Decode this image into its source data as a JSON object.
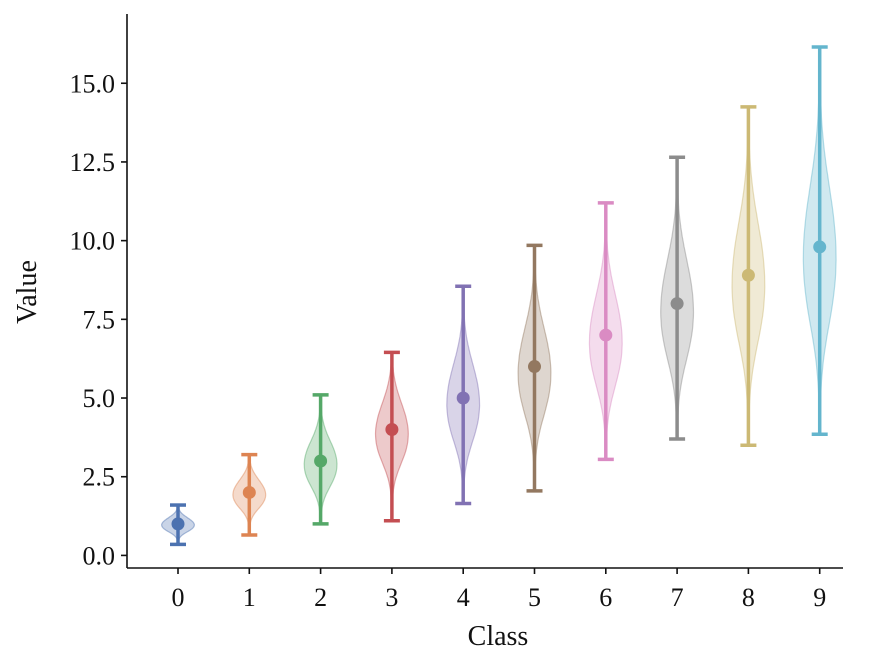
{
  "chart_data": {
    "type": "violin",
    "title": "",
    "xlabel": "Class",
    "ylabel": "Value",
    "ylim": [
      -0.4,
      17.2
    ],
    "yticks": [
      0.0,
      2.5,
      5.0,
      7.5,
      10.0,
      12.5,
      15.0
    ],
    "ytick_labels": [
      "0.0",
      "2.5",
      "5.0",
      "7.5",
      "10.0",
      "12.5",
      "15.0"
    ],
    "categories": [
      "0",
      "1",
      "2",
      "3",
      "4",
      "5",
      "6",
      "7",
      "8",
      "9"
    ],
    "series": [
      {
        "category": "0",
        "mean": 1.0,
        "min": 0.35,
        "max": 1.6,
        "color": "#4c72b0"
      },
      {
        "category": "1",
        "mean": 2.0,
        "min": 0.65,
        "max": 3.2,
        "color": "#dd8452"
      },
      {
        "category": "2",
        "mean": 3.0,
        "min": 1.0,
        "max": 5.1,
        "color": "#55a868"
      },
      {
        "category": "3",
        "mean": 4.0,
        "min": 1.1,
        "max": 6.45,
        "color": "#c44e52"
      },
      {
        "category": "4",
        "mean": 5.0,
        "min": 1.65,
        "max": 8.55,
        "color": "#8172b3"
      },
      {
        "category": "5",
        "mean": 6.0,
        "min": 2.05,
        "max": 9.85,
        "color": "#937860"
      },
      {
        "category": "6",
        "mean": 7.0,
        "min": 3.05,
        "max": 11.2,
        "color": "#da8bc3"
      },
      {
        "category": "7",
        "mean": 8.0,
        "min": 3.7,
        "max": 12.65,
        "color": "#8c8c8c"
      },
      {
        "category": "8",
        "mean": 8.9,
        "min": 3.5,
        "max": 14.25,
        "color": "#ccb974"
      },
      {
        "category": "9",
        "mean": 9.8,
        "min": 3.85,
        "max": 16.15,
        "color": "#64b5cd"
      }
    ]
  }
}
